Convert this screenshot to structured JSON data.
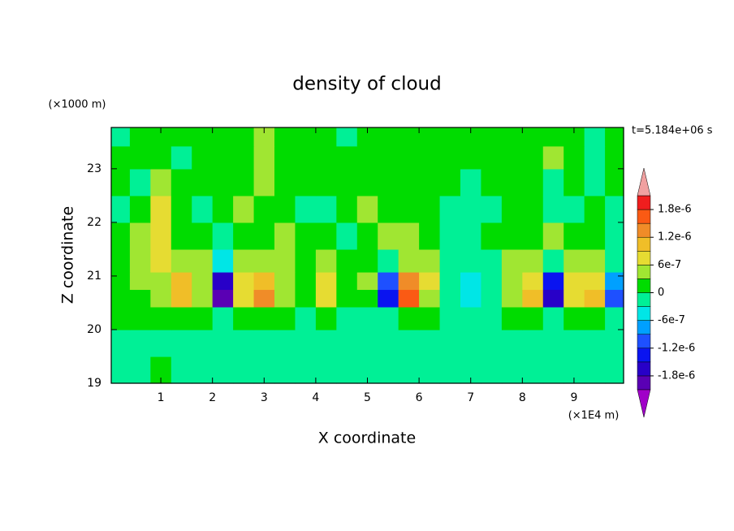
{
  "chart_data": {
    "type": "contour",
    "title": "density of cloud",
    "x_label": "X coordinate",
    "y_label": "Z coordinate",
    "x_unit": "(×1E4 m)",
    "y_unit": "(×1000 m)",
    "annotation": "t=5.184e+06 s",
    "xlim": [
      0.04,
      9.96
    ],
    "ylim": [
      19,
      23.77
    ],
    "xticks": [
      1,
      2,
      3,
      4,
      5,
      6,
      7,
      8,
      9
    ],
    "yticks": [
      19,
      20,
      21,
      22,
      23
    ],
    "x": [
      0.2,
      0.6,
      1.0,
      1.4,
      1.8,
      2.2,
      2.6,
      3.0,
      3.4,
      3.8,
      4.2,
      4.6,
      5.0,
      5.4,
      5.8,
      6.2,
      6.6,
      7.0,
      7.4,
      7.8,
      8.2,
      8.6,
      9.0,
      9.4,
      9.8
    ],
    "y": [
      19.25,
      19.75,
      20.25,
      20.6,
      20.9,
      21.25,
      21.75,
      22.25,
      22.75,
      23.25,
      23.6
    ],
    "z": [
      [
        -1e-07,
        -1e-07,
        1e-07,
        -1e-07,
        -1e-07,
        -1e-07,
        -1e-07,
        -1e-07,
        -1e-07,
        -1e-07,
        -1e-07,
        -1e-07,
        -1e-07,
        -1e-07,
        -1e-07,
        -1e-07,
        -1e-07,
        -1e-07,
        -1e-07,
        -1e-07,
        -1e-07,
        -1e-07,
        -1e-07,
        -1e-07,
        -1e-07
      ],
      [
        -1e-07,
        -1e-07,
        -1e-07,
        -1e-07,
        -1e-07,
        -1e-07,
        -1e-07,
        -1e-07,
        -1e-07,
        -1e-07,
        -1e-07,
        -1e-07,
        -1e-07,
        -1e-07,
        -1e-07,
        -1e-07,
        -1e-07,
        -1e-07,
        -1e-07,
        -1e-07,
        -1e-07,
        -1e-07,
        -1e-07,
        -1e-07,
        -1e-07
      ],
      [
        1e-07,
        1e-07,
        1e-07,
        2e-07,
        1e-07,
        -3e-07,
        1e-07,
        2e-07,
        1e-07,
        -1e-07,
        1e-07,
        -1e-07,
        -1e-07,
        -2e-07,
        2e-07,
        1e-07,
        -1e-07,
        -1e-07,
        -1e-07,
        1e-07,
        1e-07,
        -2e-07,
        1e-07,
        1e-07,
        -1e-07
      ],
      [
        1e-07,
        2e-07,
        4e-07,
        1.1e-06,
        3e-07,
        -1.9e-06,
        8e-07,
        1.2e-06,
        4e-07,
        1e-07,
        7e-07,
        1e-07,
        2e-07,
        -1.3e-06,
        1.7e-06,
        5e-07,
        -2e-07,
        -4e-07,
        -2e-07,
        4e-07,
        9e-07,
        -1.6e-06,
        7e-07,
        1e-06,
        -1e-06
      ],
      [
        1e-07,
        3e-07,
        5e-07,
        9e-07,
        4e-07,
        -1.6e-06,
        7e-07,
        1e-06,
        5e-07,
        2e-07,
        8e-07,
        2e-07,
        3e-07,
        -1e-06,
        1.4e-06,
        6e-07,
        -3e-07,
        -5e-07,
        -2e-07,
        5e-07,
        8e-07,
        -1.3e-06,
        6e-07,
        8e-07,
        -8e-07
      ],
      [
        2e-07,
        4e-07,
        7e-07,
        5e-07,
        3e-07,
        -6e-07,
        5e-07,
        4e-07,
        3e-07,
        2e-07,
        5e-07,
        1e-07,
        2e-07,
        -2e-07,
        5e-07,
        3e-07,
        -2e-07,
        -3e-07,
        -1e-07,
        3e-07,
        4e-07,
        -2e-07,
        3e-07,
        4e-07,
        -2e-07
      ],
      [
        1e-07,
        3e-07,
        7e-07,
        2e-07,
        2e-07,
        -2e-07,
        2e-07,
        1e-07,
        4e-07,
        2e-07,
        1e-07,
        -1e-07,
        2e-07,
        4e-07,
        3e-07,
        1e-07,
        -1e-07,
        -1e-07,
        1e-07,
        2e-07,
        1e-07,
        4e-07,
        1e-07,
        2e-07,
        -1e-07
      ],
      [
        -1e-07,
        2e-07,
        6e-07,
        1e-07,
        -1e-07,
        1e-07,
        3e-07,
        1e-07,
        2e-07,
        -1e-07,
        -1e-07,
        1e-07,
        3e-07,
        2e-07,
        1e-07,
        1e-07,
        -1e-07,
        -2e-07,
        -1e-07,
        1e-07,
        2e-07,
        -1e-07,
        -1e-07,
        1e-07,
        -1e-07
      ],
      [
        1e-07,
        -1e-07,
        4e-07,
        1e-07,
        1e-07,
        2e-07,
        1e-07,
        3e-07,
        1e-07,
        1e-07,
        1e-07,
        2e-07,
        1e-07,
        2e-07,
        1e-07,
        1e-07,
        1e-07,
        -1e-07,
        1e-07,
        2e-07,
        1e-07,
        -1e-07,
        1e-07,
        -1e-07,
        1e-07
      ],
      [
        1e-07,
        1e-07,
        2e-07,
        -1e-07,
        1e-07,
        1e-07,
        1e-07,
        4e-07,
        1e-07,
        1e-07,
        1e-07,
        1e-07,
        2e-07,
        1e-07,
        1e-07,
        2e-07,
        1e-07,
        1e-07,
        2e-07,
        1e-07,
        1e-07,
        3e-07,
        1e-07,
        -1e-07,
        1e-07
      ],
      [
        -1e-07,
        1e-07,
        2e-07,
        1e-07,
        1e-07,
        1e-07,
        1e-07,
        3e-07,
        1e-07,
        1e-07,
        1e-07,
        -1e-07,
        1e-07,
        1e-07,
        2e-07,
        1e-07,
        1e-07,
        1e-07,
        1e-07,
        1e-07,
        1e-07,
        2e-07,
        1e-07,
        -1e-07,
        1e-07
      ]
    ],
    "levels": [
      -2.1e-06,
      -1.8e-06,
      -1.5e-06,
      -1.2e-06,
      -9e-07,
      -6e-07,
      -3e-07,
      0,
      3e-07,
      6e-07,
      9e-07,
      1.2e-06,
      1.5e-06,
      1.8e-06,
      2.1e-06
    ],
    "colors": [
      "#a000c8",
      "#5a00b4",
      "#2800c8",
      "#0a14f0",
      "#1e50ff",
      "#00a0ff",
      "#00e6e6",
      "#00f096",
      "#00dc00",
      "#a0e632",
      "#e6dc32",
      "#f0be28",
      "#f08c28",
      "#fa5a14",
      "#f01e1e",
      "#f0a0a0"
    ],
    "colorbar_ticks": [
      {
        "value": -1.8e-06,
        "label": "-1.8e-6"
      },
      {
        "value": -1.2e-06,
        "label": "-1.2e-6"
      },
      -6e-07,
      0,
      6e-07,
      {
        "value": 1.2e-06,
        "label": "1.2e-6"
      },
      {
        "value": 1.8e-06,
        "label": "1.8e-6"
      }
    ]
  }
}
